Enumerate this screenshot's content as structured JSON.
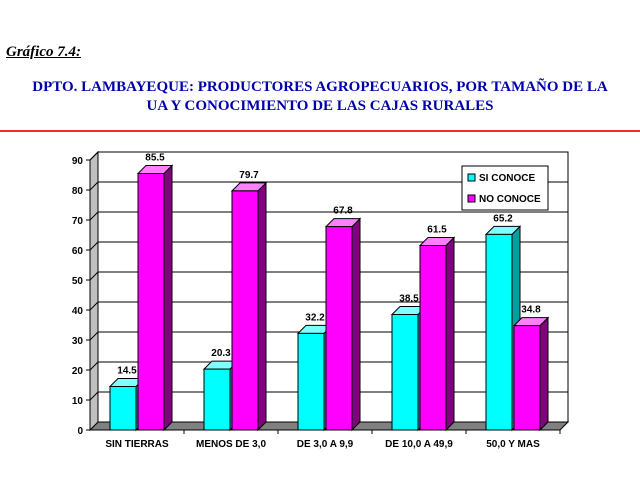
{
  "figure_label": "Gráfico 7.4:",
  "chart_data": {
    "type": "bar",
    "title_line1": "DPTO. LAMBAYEQUE: PRODUCTORES AGROPECUARIOS, POR TAMAÑO DE LA",
    "title_line2": "UA Y CONOCIMIENTO DE LAS CAJAS RURALES",
    "categories": [
      "SIN TIERRAS",
      "MENOS DE 3,0",
      "DE 3,0 A 9,9",
      "DE 10,0 A 49,9",
      "50,0 Y MAS"
    ],
    "series": [
      {
        "name": "SI CONOCE",
        "values": [
          14.5,
          20.3,
          32.2,
          38.5,
          65.2
        ],
        "color": "#00ffff",
        "side_color": "#00a0a0",
        "top_color": "#80ffff"
      },
      {
        "name": "NO CONOCE",
        "values": [
          85.5,
          79.7,
          67.8,
          61.5,
          34.8
        ],
        "color": "#ff00ff",
        "side_color": "#800080",
        "top_color": "#ff80ff"
      }
    ],
    "ylim": [
      0,
      90
    ],
    "yticks": [
      0,
      10,
      20,
      30,
      40,
      50,
      60,
      70,
      80,
      90
    ],
    "grid": true,
    "legend": "top-right"
  }
}
